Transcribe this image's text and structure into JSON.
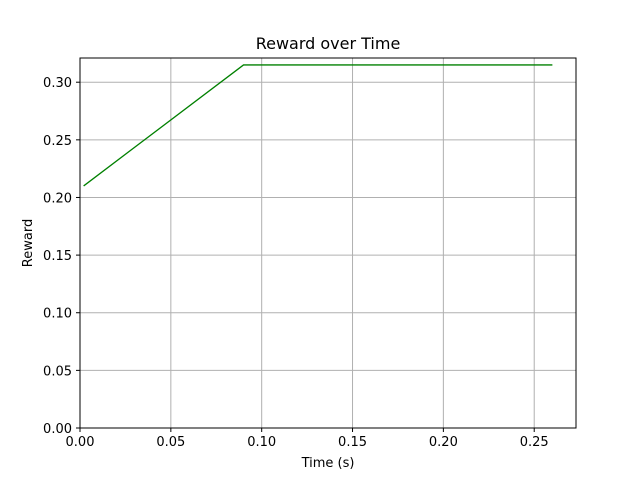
{
  "chart_data": {
    "type": "line",
    "title": "Reward over Time",
    "xlabel": "Time (s)",
    "ylabel": "Reward",
    "xlim": [
      0.0,
      0.273
    ],
    "ylim": [
      0.0,
      0.321
    ],
    "xticks": [
      0.0,
      0.05,
      0.1,
      0.15,
      0.2,
      0.25
    ],
    "xtick_labels": [
      "0.00",
      "0.05",
      "0.10",
      "0.15",
      "0.20",
      "0.25"
    ],
    "yticks": [
      0.0,
      0.05,
      0.1,
      0.15,
      0.2,
      0.25,
      0.3
    ],
    "ytick_labels": [
      "0.00",
      "0.05",
      "0.10",
      "0.15",
      "0.20",
      "0.25",
      "0.30"
    ],
    "grid": true,
    "series": [
      {
        "color": "#008000",
        "x": [
          0.002,
          0.09,
          0.26
        ],
        "y": [
          0.21,
          0.315,
          0.315
        ]
      }
    ]
  },
  "colors": {
    "grid": "#b0b0b0",
    "axes": "#000000"
  }
}
